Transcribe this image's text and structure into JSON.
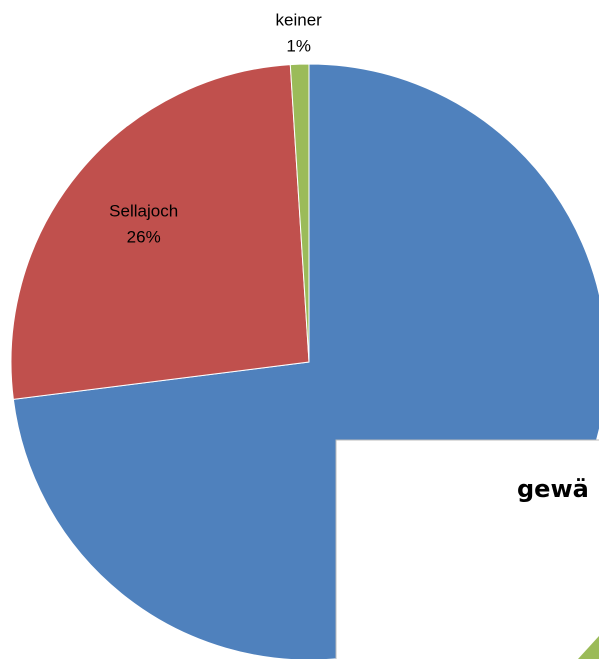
{
  "chart_data": {
    "type": "pie",
    "categories": [
      null,
      "Sellajoch",
      "keiner"
    ],
    "values": [
      73,
      26,
      1
    ],
    "value_labels": [
      null,
      "26%",
      "1%"
    ],
    "colors": [
      "#4f81bd",
      "#c0504d",
      "#9bbb59"
    ]
  },
  "overlay": {
    "title": "gewä"
  }
}
